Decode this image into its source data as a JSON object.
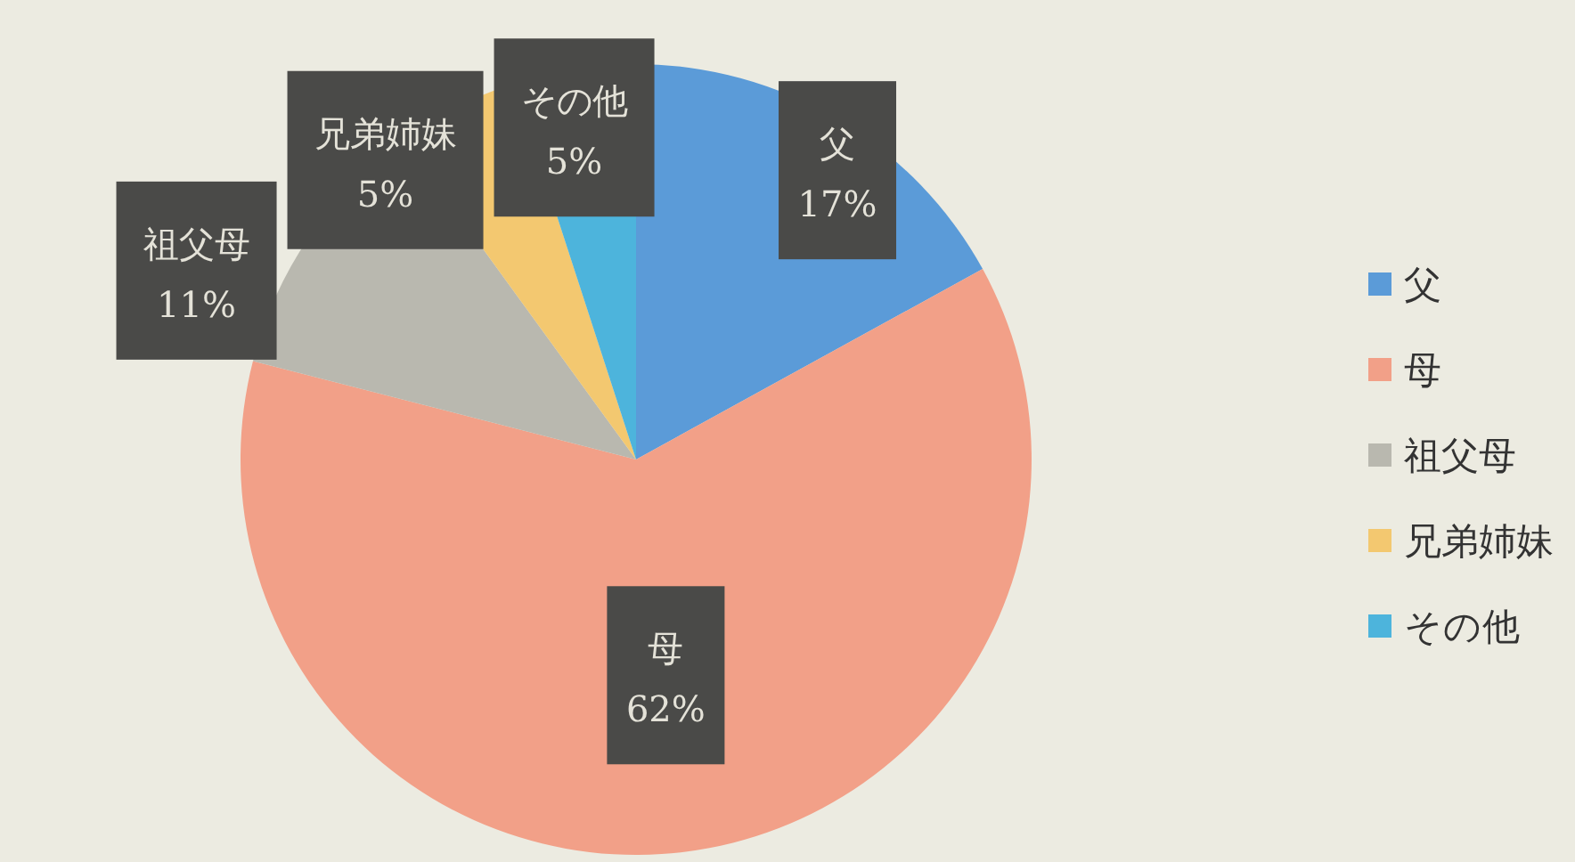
{
  "chart_data": {
    "type": "pie",
    "categories": [
      "父",
      "母",
      "祖父母",
      "兄弟姉妹",
      "その他"
    ],
    "values": [
      17,
      62,
      11,
      5,
      5
    ],
    "colors": [
      "#5b9bd8",
      "#f2a088",
      "#b9b8af",
      "#f3c870",
      "#4db4dc"
    ],
    "value_labels": [
      "17%",
      "62%",
      "11%",
      "5%",
      "5%"
    ],
    "legend": "right"
  }
}
